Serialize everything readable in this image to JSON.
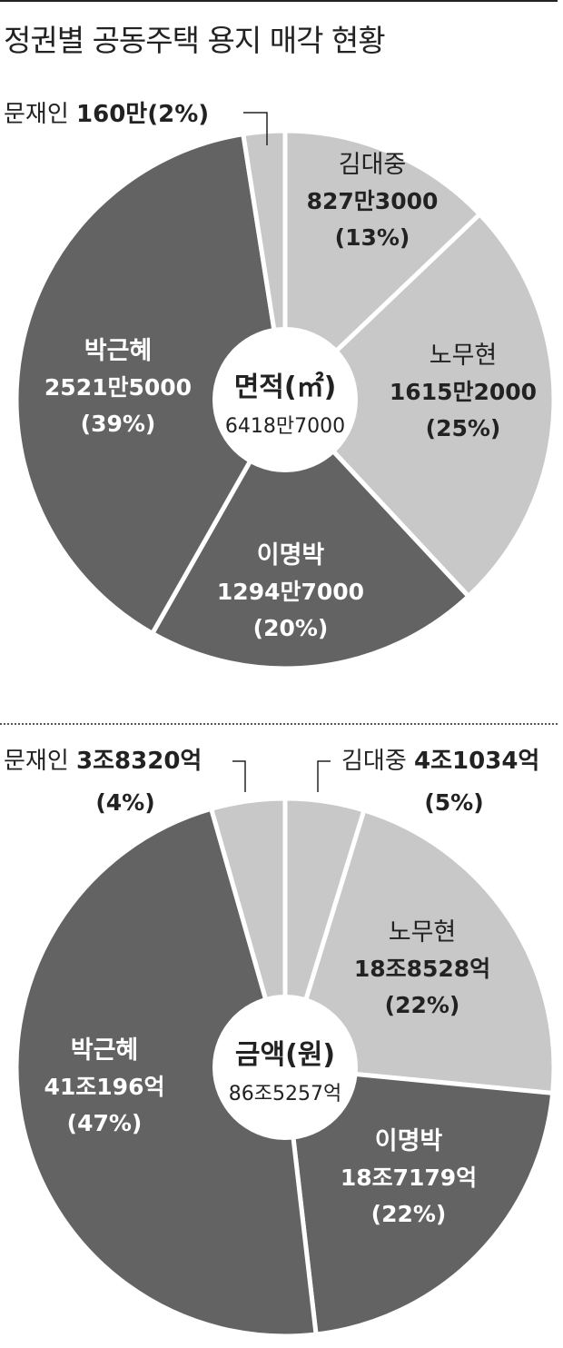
{
  "title": "정권별 공동주택 용지 매각 현황",
  "colors": {
    "light": "#c8c8c8",
    "dark": "#636363",
    "text": "#222222",
    "white": "#ffffff"
  },
  "chart_data": [
    {
      "type": "pie",
      "center_label": "면적(㎡)",
      "total": "6418만7000",
      "slices": [
        {
          "name": "김대중",
          "value": 8273000,
          "amount": "827만3000",
          "pct": "(13%)"
        },
        {
          "name": "노무현",
          "value": 16152000,
          "amount": "1615만2000",
          "pct": "(25%)"
        },
        {
          "name": "이명박",
          "value": 12947000,
          "amount": "1294만7000",
          "pct": "(20%)"
        },
        {
          "name": "박근혜",
          "value": 25215000,
          "amount": "2521만5000",
          "pct": "(39%)"
        },
        {
          "name": "문재인",
          "value": 1600000,
          "amount": "160만",
          "pct": "(2%)"
        }
      ]
    },
    {
      "type": "pie",
      "center_label": "금액(원)",
      "total": "86조5257억",
      "slices": [
        {
          "name": "김대중",
          "value": 41034,
          "amount": "4조1034억",
          "pct": "(5%)"
        },
        {
          "name": "노무현",
          "value": 188528,
          "amount": "18조8528억",
          "pct": "(22%)"
        },
        {
          "name": "이명박",
          "value": 187179,
          "amount": "18조7179억",
          "pct": "(22%)"
        },
        {
          "name": "박근혜",
          "value": 410196,
          "amount": "41조196억",
          "pct": "(47%)"
        },
        {
          "name": "문재인",
          "value": 38320,
          "amount": "3조8320억",
          "pct": "(4%)"
        }
      ]
    }
  ]
}
